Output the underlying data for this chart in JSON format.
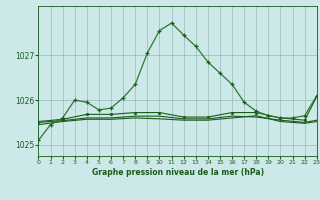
{
  "title": "Graphe pression niveau de la mer (hPa)",
  "background_color": "#cce8e8",
  "grid_color": "#99bbbb",
  "line_color_dark": "#1a5c1a",
  "line_color_medium": "#2d7a2d",
  "xlim": [
    0,
    23
  ],
  "ylim": [
    1024.75,
    1028.1
  ],
  "yticks": [
    1025,
    1026,
    1027
  ],
  "xticks": [
    0,
    1,
    2,
    3,
    4,
    5,
    6,
    7,
    8,
    9,
    10,
    11,
    12,
    13,
    14,
    15,
    16,
    17,
    18,
    19,
    20,
    21,
    22,
    23
  ],
  "series1_x": [
    0,
    1,
    2,
    3,
    4,
    5,
    6,
    7,
    8,
    9,
    10,
    11,
    12,
    13,
    14,
    15,
    16,
    17,
    18,
    19,
    20,
    21,
    22,
    23
  ],
  "series1_y": [
    1025.1,
    1025.45,
    1025.6,
    1026.0,
    1025.95,
    1025.78,
    1025.82,
    1026.05,
    1026.35,
    1027.05,
    1027.55,
    1027.72,
    1027.45,
    1027.2,
    1026.85,
    1026.6,
    1026.35,
    1025.95,
    1025.75,
    1025.65,
    1025.6,
    1025.6,
    1025.65,
    1026.1
  ],
  "series2_x": [
    0,
    2,
    4,
    6,
    8,
    10,
    12,
    14,
    16,
    18,
    20,
    22,
    23
  ],
  "series2_y": [
    1025.52,
    1025.57,
    1025.68,
    1025.68,
    1025.72,
    1025.72,
    1025.62,
    1025.62,
    1025.72,
    1025.72,
    1025.6,
    1025.55,
    1026.08
  ],
  "series3_x": [
    0,
    2,
    4,
    6,
    8,
    10,
    12,
    14,
    16,
    18,
    20,
    22,
    23
  ],
  "series3_y": [
    1025.5,
    1025.54,
    1025.6,
    1025.6,
    1025.64,
    1025.64,
    1025.58,
    1025.58,
    1025.64,
    1025.62,
    1025.55,
    1025.5,
    1025.55
  ],
  "series4_x": [
    0,
    2,
    4,
    6,
    8,
    10,
    12,
    14,
    16,
    18,
    20,
    22,
    23
  ],
  "series4_y": [
    1025.45,
    1025.52,
    1025.57,
    1025.57,
    1025.6,
    1025.58,
    1025.55,
    1025.55,
    1025.6,
    1025.65,
    1025.52,
    1025.48,
    1025.52
  ]
}
